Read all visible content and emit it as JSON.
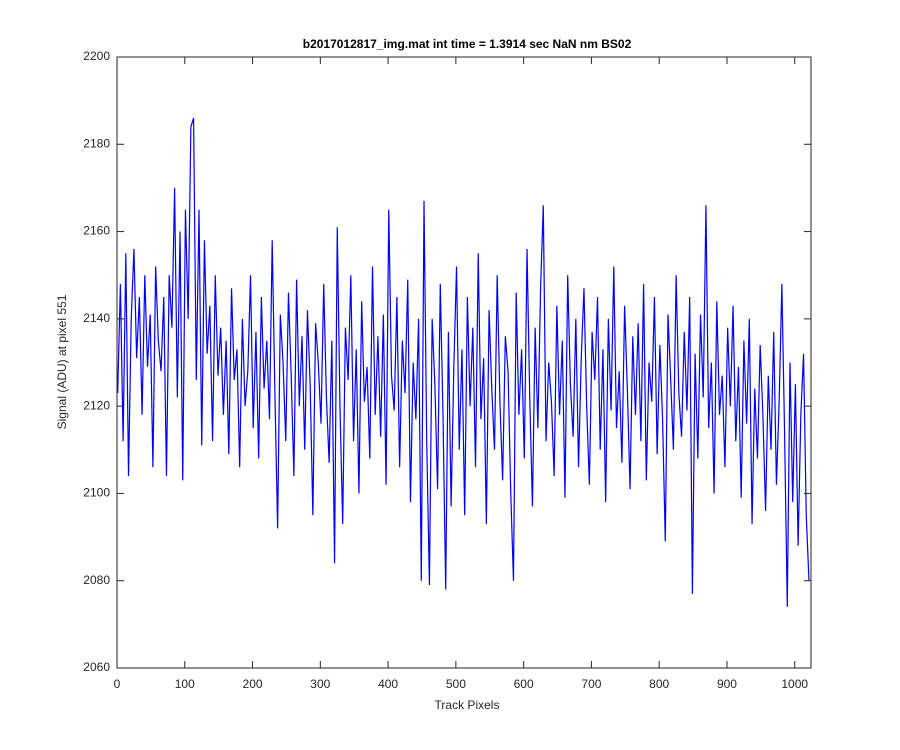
{
  "chart_data": {
    "type": "line",
    "title": "b2017012817_img.mat int time = 1.3914 sec  NaN nm BS02",
    "x_label": "Track Pixels",
    "y_label": "Signal (ADU) at pixel 551",
    "color": "#0000ff",
    "xlim": [
      0,
      1024
    ],
    "ylim": [
      2060,
      2200
    ],
    "xticks": [
      0,
      100,
      200,
      300,
      400,
      500,
      600,
      700,
      800,
      900,
      1000
    ],
    "yticks": [
      2060,
      2080,
      2100,
      2120,
      2140,
      2160,
      2180,
      2200
    ],
    "x": [
      1,
      5,
      9,
      13,
      17,
      21,
      25,
      29,
      33,
      37,
      41,
      45,
      49,
      53,
      57,
      61,
      65,
      69,
      73,
      77,
      81,
      85,
      89,
      93,
      97,
      101,
      105,
      109,
      113,
      117,
      121,
      125,
      129,
      133,
      137,
      141,
      145,
      149,
      153,
      157,
      161,
      165,
      169,
      173,
      177,
      181,
      185,
      189,
      193,
      197,
      201,
      205,
      209,
      213,
      217,
      221,
      225,
      229,
      233,
      237,
      241,
      245,
      249,
      253,
      257,
      261,
      265,
      269,
      273,
      277,
      281,
      285,
      289,
      293,
      297,
      301,
      305,
      309,
      313,
      317,
      321,
      325,
      329,
      333,
      337,
      341,
      345,
      349,
      353,
      357,
      361,
      365,
      369,
      373,
      377,
      381,
      385,
      389,
      393,
      397,
      401,
      405,
      409,
      413,
      417,
      421,
      425,
      429,
      433,
      437,
      441,
      445,
      449,
      453,
      457,
      461,
      465,
      469,
      473,
      477,
      481,
      485,
      489,
      493,
      497,
      501,
      505,
      509,
      513,
      517,
      521,
      525,
      529,
      533,
      537,
      541,
      545,
      549,
      553,
      557,
      561,
      565,
      569,
      573,
      577,
      581,
      585,
      589,
      593,
      597,
      601,
      605,
      609,
      613,
      617,
      621,
      625,
      629,
      633,
      637,
      641,
      645,
      649,
      653,
      657,
      661,
      665,
      669,
      673,
      677,
      681,
      685,
      689,
      693,
      697,
      701,
      705,
      709,
      713,
      717,
      721,
      725,
      729,
      733,
      737,
      741,
      745,
      749,
      753,
      757,
      761,
      765,
      769,
      773,
      777,
      781,
      785,
      789,
      793,
      797,
      801,
      805,
      809,
      813,
      817,
      821,
      825,
      829,
      833,
      837,
      841,
      845,
      849,
      853,
      857,
      861,
      865,
      869,
      873,
      877,
      881,
      885,
      889,
      893,
      897,
      901,
      905,
      909,
      913,
      917,
      921,
      925,
      929,
      933,
      937,
      941,
      945,
      949,
      953,
      957,
      961,
      965,
      969,
      973,
      977,
      981,
      985,
      989,
      993,
      997,
      1001,
      1005,
      1009,
      1013,
      1017,
      1021
    ],
    "values": [
      2123,
      2148,
      2112,
      2155,
      2104,
      2140,
      2156,
      2131,
      2145,
      2118,
      2150,
      2129,
      2141,
      2106,
      2152,
      2135,
      2128,
      2145,
      2104,
      2150,
      2138,
      2170,
      2122,
      2160,
      2103,
      2165,
      2140,
      2184,
      2186,
      2126,
      2165,
      2111,
      2158,
      2132,
      2143,
      2112,
      2150,
      2127,
      2138,
      2118,
      2135,
      2109,
      2147,
      2126,
      2133,
      2106,
      2140,
      2120,
      2128,
      2150,
      2115,
      2137,
      2108,
      2145,
      2124,
      2135,
      2117,
      2158,
      2123,
      2092,
      2141,
      2130,
      2112,
      2146,
      2127,
      2104,
      2149,
      2120,
      2136,
      2110,
      2142,
      2125,
      2095,
      2139,
      2130,
      2116,
      2148,
      2122,
      2107,
      2135,
      2084,
      2161,
      2120,
      2093,
      2138,
      2126,
      2150,
      2112,
      2133,
      2100,
      2144,
      2121,
      2129,
      2108,
      2152,
      2118,
      2136,
      2113,
      2141,
      2102,
      2165,
      2127,
      2119,
      2145,
      2106,
      2135,
      2123,
      2149,
      2098,
      2130,
      2117,
      2140,
      2080,
      2167,
      2112,
      2079,
      2140,
      2125,
      2101,
      2148,
      2118,
      2078,
      2137,
      2097,
      2129,
      2152,
      2110,
      2133,
      2095,
      2145,
      2120,
      2138,
      2106,
      2155,
      2117,
      2131,
      2093,
      2142,
      2124,
      2110,
      2150,
      2121,
      2103,
      2136,
      2128,
      2100,
      2080,
      2146,
      2118,
      2133,
      2108,
      2156,
      2122,
      2097,
      2138,
      2115,
      2147,
      2166,
      2112,
      2130,
      2121,
      2104,
      2143,
      2118,
      2135,
      2099,
      2150,
      2125,
      2113,
      2140,
      2106,
      2131,
      2147,
      2120,
      2102,
      2137,
      2126,
      2145,
      2110,
      2133,
      2098,
      2140,
      2119,
      2152,
      2115,
      2128,
      2107,
      2143,
      2124,
      2101,
      2136,
      2118,
      2139,
      2112,
      2148,
      2103,
      2130,
      2121,
      2145,
      2109,
      2134,
      2117,
      2089,
      2141,
      2126,
      2110,
      2150,
      2123,
      2113,
      2137,
      2119,
      2145,
      2077,
      2132,
      2108,
      2141,
      2122,
      2166,
      2115,
      2130,
      2100,
      2144,
      2118,
      2127,
      2106,
      2138,
      2120,
      2143,
      2112,
      2129,
      2099,
      2135,
      2116,
      2140,
      2093,
      2124,
      2108,
      2134,
      2118,
      2096,
      2127,
      2110,
      2137,
      2102,
      2121,
      2148,
      2114,
      2074,
      2130,
      2098,
      2125,
      2088,
      2118,
      2132,
      2095,
      2080
    ]
  }
}
